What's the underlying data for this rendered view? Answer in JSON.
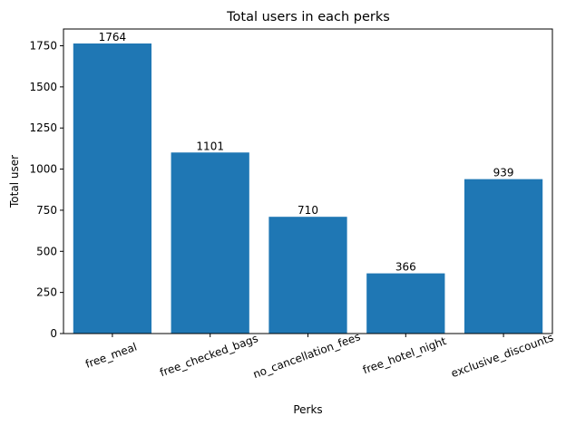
{
  "chart_data": {
    "type": "bar",
    "title": "Total users in each perks",
    "xlabel": "Perks",
    "ylabel": "Total user",
    "categories": [
      "free_meal",
      "free_checked_bags",
      "no_cancellation_fees",
      "free_hotel_night",
      "exclusive_discounts"
    ],
    "values": [
      1764,
      1101,
      710,
      366,
      939
    ],
    "data_labels": [
      "1764",
      "1101",
      "710",
      "366",
      "939"
    ],
    "yticks": [
      0,
      250,
      500,
      750,
      1000,
      1250,
      1500,
      1750
    ],
    "ylim": [
      0,
      1852
    ],
    "bar_color": "#1f77b4",
    "grid": false,
    "legend": "none"
  }
}
